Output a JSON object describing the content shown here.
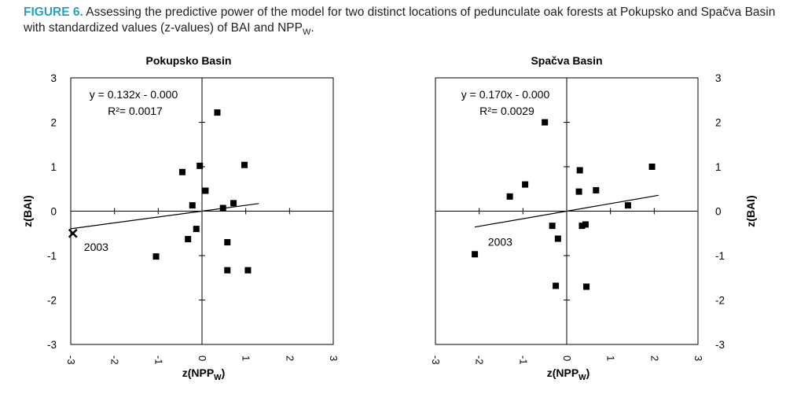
{
  "caption": {
    "label": "FIGURE 6.",
    "text_before_sub": " Assessing the predictive power of the model for two distinct locations of pedunculate oak forests at Pokupsko and Spačva Basin with standardized values (z-values) of BAI and NPP",
    "sub": "W",
    "text_after_sub": "."
  },
  "chart_data": [
    {
      "type": "scatter",
      "title": "Pokupsko Basin",
      "xlabel": "z(NPP",
      "xlabel_sub": "W",
      "xlabel_end": ")",
      "ylabel": "z(BAI)",
      "xlim": [
        -3,
        3
      ],
      "ylim": [
        -3,
        3
      ],
      "xticks": [
        "-3",
        "-2",
        "-1",
        "0",
        "1",
        "2",
        "3"
      ],
      "yticks": [
        "3",
        "2",
        "1",
        "0",
        "-1",
        "-2",
        "-3"
      ],
      "y_axis_side": "left",
      "equation": "y = 0.132x - 0.000",
      "r2_label": "R²= 0.0017",
      "trendline": {
        "x": [
          -3,
          1.3
        ],
        "slope": 0.132,
        "intercept": 0.0
      },
      "points": [
        {
          "x": 0.35,
          "y": 2.22
        },
        {
          "x": 0.97,
          "y": 1.04
        },
        {
          "x": -0.05,
          "y": 1.02
        },
        {
          "x": -0.45,
          "y": 0.88
        },
        {
          "x": 0.08,
          "y": 0.46
        },
        {
          "x": 0.72,
          "y": 0.18
        },
        {
          "x": -0.22,
          "y": 0.13
        },
        {
          "x": 0.48,
          "y": 0.07
        },
        {
          "x": -0.13,
          "y": -0.4
        },
        {
          "x": -0.32,
          "y": -0.63
        },
        {
          "x": 0.58,
          "y": -0.7
        },
        {
          "x": -1.05,
          "y": -1.02
        },
        {
          "x": 0.58,
          "y": -1.33
        },
        {
          "x": 1.05,
          "y": -1.33
        }
      ],
      "highlight": {
        "x": -2.95,
        "y": -0.5,
        "marker": "x",
        "label": "2003"
      }
    },
    {
      "type": "scatter",
      "title": "Spačva Basin",
      "xlabel": "z(NPP",
      "xlabel_sub": "W",
      "xlabel_end": ")",
      "ylabel": "z(BAI)",
      "xlim": [
        -3,
        3
      ],
      "ylim": [
        -3,
        3
      ],
      "xticks": [
        "-3",
        "-2",
        "-1",
        "0",
        "1",
        "2",
        "3"
      ],
      "yticks": [
        "3",
        "2",
        "1",
        "0",
        "-1",
        "-2",
        "-3"
      ],
      "y_axis_side": "right",
      "equation": "y = 0.170x - 0.000",
      "r2_label": "R²= 0.0029",
      "trendline": {
        "x": [
          -2.1,
          2.1
        ],
        "slope": 0.17,
        "intercept": 0.0
      },
      "points": [
        {
          "x": -0.5,
          "y": 2.0
        },
        {
          "x": 1.95,
          "y": 1.0
        },
        {
          "x": 0.3,
          "y": 0.92
        },
        {
          "x": -0.95,
          "y": 0.6
        },
        {
          "x": 0.67,
          "y": 0.47
        },
        {
          "x": 0.28,
          "y": 0.44
        },
        {
          "x": -1.3,
          "y": 0.33
        },
        {
          "x": 1.4,
          "y": 0.13
        },
        {
          "x": -0.33,
          "y": -0.33
        },
        {
          "x": 0.43,
          "y": -0.3
        },
        {
          "x": 0.35,
          "y": -0.33
        },
        {
          "x": -0.2,
          "y": -0.62
        },
        {
          "x": -2.1,
          "y": -0.97
        },
        {
          "x": -0.25,
          "y": -1.68
        },
        {
          "x": 0.45,
          "y": -1.7
        }
      ],
      "highlight": {
        "x": null,
        "y": null,
        "marker": "none",
        "label": "2003",
        "label_x": -1.8,
        "label_y": -0.78
      }
    }
  ]
}
